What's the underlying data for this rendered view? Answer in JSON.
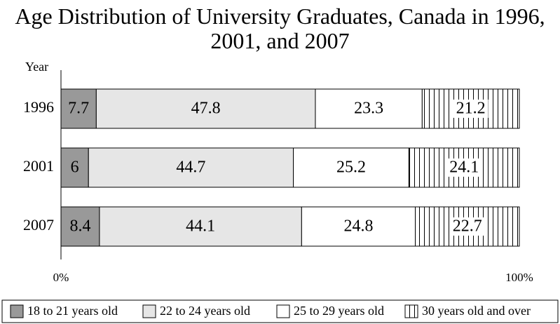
{
  "chart_data": {
    "type": "stacked-bar-horizontal",
    "title": "Age Distribution of University Graduates, Canada in 1996, 2001, and 2007",
    "y_axis_label": "Year",
    "categories": [
      "1996",
      "2001",
      "2007"
    ],
    "series": [
      {
        "name": "18 to 21 years old",
        "color": "#999999",
        "values": [
          7.7,
          6,
          8.4
        ]
      },
      {
        "name": "22 to 24 years old",
        "color": "#e6e6e6",
        "values": [
          47.8,
          44.7,
          44.1
        ]
      },
      {
        "name": "25 to 29 years old",
        "color": "#ffffff",
        "values": [
          23.3,
          25.2,
          24.8
        ]
      },
      {
        "name": "30 years old and over",
        "color": "#ffffff",
        "hatch": "vertical",
        "values": [
          21.2,
          24.1,
          22.7
        ]
      }
    ],
    "xlim": [
      0,
      100
    ],
    "xticks": [
      {
        "value": 0,
        "label": "0%"
      },
      {
        "value": 100,
        "label": "100%"
      }
    ],
    "legend": "bottom"
  }
}
